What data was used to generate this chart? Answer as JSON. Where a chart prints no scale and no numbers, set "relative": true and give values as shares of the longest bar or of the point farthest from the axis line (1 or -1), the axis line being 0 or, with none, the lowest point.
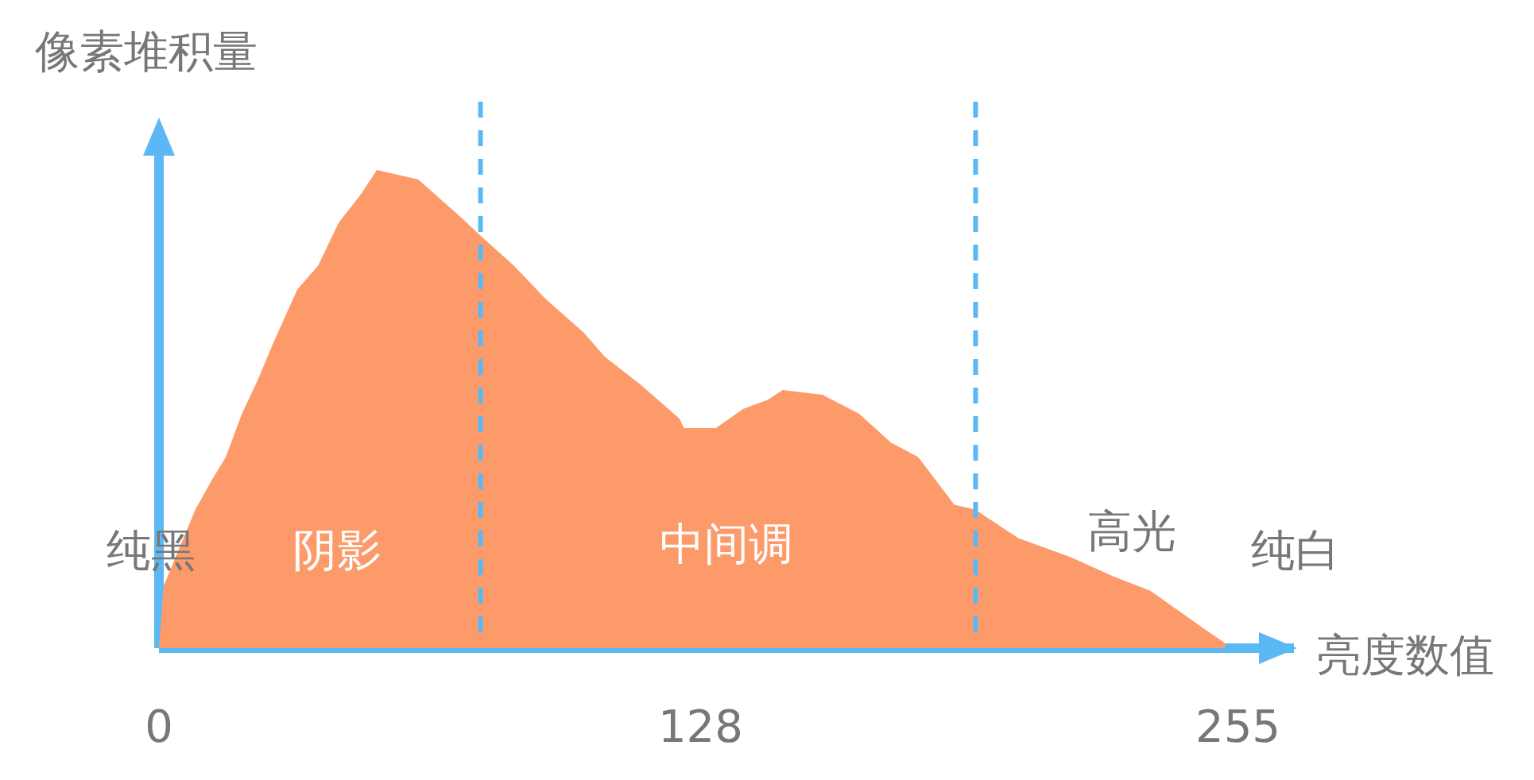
{
  "chart_data": {
    "type": "area",
    "relative": true,
    "xlabel": "亮度数值",
    "ylabel": "像素堆积量",
    "x": [
      0,
      1.1,
      8.6,
      12.4,
      15.8,
      19.6,
      23.3,
      27.1,
      32.7,
      37.6,
      42.5,
      47.8,
      51.5,
      61.3,
      71.5,
      76.3,
      83.9,
      91.4,
      100.4,
      105.3,
      114,
      123,
      124.1,
      131.6,
      138,
      144,
      147.4,
      156.8,
      165.5,
      173,
      179.4,
      188,
      192.9,
      203.1,
      215.5,
      225.6,
      234.3,
      240.7,
      247.1,
      252
    ],
    "series": [
      {
        "color": "#fd9a6a",
        "values": [
          0,
          0.13,
          0.29,
          0.35,
          0.4,
          0.49,
          0.56,
          0.64,
          0.75,
          0.8,
          0.89,
          0.95,
          1,
          0.98,
          0.9,
          0.86,
          0.8,
          0.73,
          0.66,
          0.61,
          0.55,
          0.48,
          0.46,
          0.46,
          0.5,
          0.52,
          0.54,
          0.53,
          0.49,
          0.43,
          0.4,
          0.3,
          0.29,
          0.23,
          0.19,
          0.15,
          0.12,
          0.08,
          0.04,
          0.01
        ]
      }
    ],
    "xlim": [
      0,
      269
    ],
    "xticks": [
      0,
      128,
      255
    ],
    "ref_lines": [
      {
        "axis": "x",
        "value": 76,
        "color": "#5bb8f5",
        "line_style": "dashed"
      },
      {
        "axis": "x",
        "value": 193,
        "color": "#5bb8f5",
        "line_style": "dashed"
      }
    ],
    "annotations": [
      "纯黑",
      "阴影",
      "中间调",
      "高光",
      "纯白"
    ]
  }
}
